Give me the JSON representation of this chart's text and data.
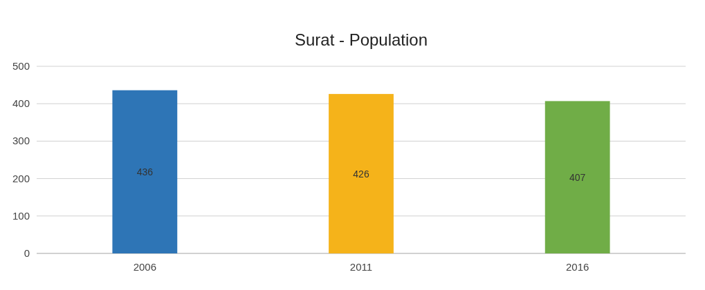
{
  "chart_data": {
    "type": "bar",
    "title": "Surat - Population",
    "categories": [
      "2006",
      "2011",
      "2016"
    ],
    "values": [
      436,
      426,
      407
    ],
    "colors": [
      "#2e75b6",
      "#f5b31a",
      "#70ad47"
    ],
    "ylim": [
      0,
      500
    ],
    "yticks": [
      0,
      100,
      200,
      300,
      400,
      500
    ],
    "grid": "y",
    "data_labels": true
  }
}
